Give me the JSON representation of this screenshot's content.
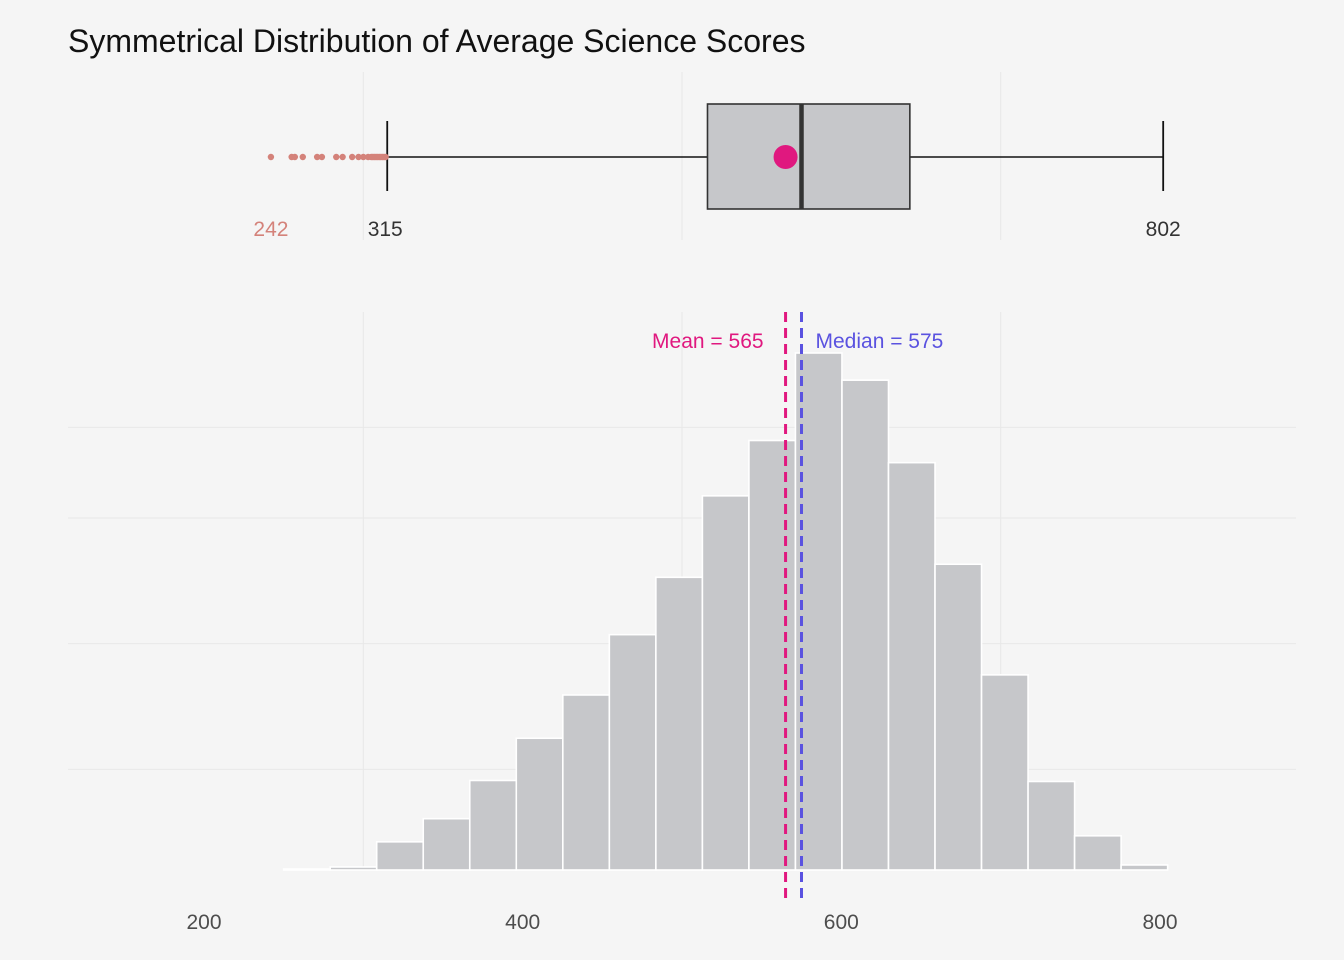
{
  "chart_data": [
    {
      "type": "box",
      "title": "Symmetrical Distribution of Average Science Scores",
      "whisker_low": 315,
      "whisker_high": 802,
      "q1": 516,
      "median": 575,
      "q3": 643,
      "mean": 565,
      "outliers": [
        242,
        255,
        257,
        262,
        271,
        274,
        283,
        287,
        293,
        297,
        300,
        303,
        305,
        306,
        307,
        308,
        309,
        310,
        311,
        312,
        313,
        314
      ],
      "labels": {
        "min_outlier": "242",
        "whisker_low": "315",
        "whisker_high": "802"
      },
      "colors": {
        "box_fill": "#c6c7ca",
        "box_stroke": "#333333",
        "mean_point": "#e0187f",
        "outlier": "#d4827a"
      },
      "xlim": [
        110,
        890
      ]
    },
    {
      "type": "bar",
      "subtype": "histogram",
      "bins": [
        {
          "x0": 250,
          "x1": 279.2,
          "count": 1
        },
        {
          "x0": 279.2,
          "x1": 308.4,
          "count": 3
        },
        {
          "x0": 308.4,
          "x1": 337.6,
          "count": 28
        },
        {
          "x0": 337.6,
          "x1": 366.8,
          "count": 51
        },
        {
          "x0": 366.8,
          "x1": 396,
          "count": 89
        },
        {
          "x0": 396,
          "x1": 425.2,
          "count": 131
        },
        {
          "x0": 425.2,
          "x1": 454.4,
          "count": 174
        },
        {
          "x0": 454.4,
          "x1": 483.6,
          "count": 234
        },
        {
          "x0": 483.6,
          "x1": 512.8,
          "count": 291
        },
        {
          "x0": 512.8,
          "x1": 542,
          "count": 372
        },
        {
          "x0": 542,
          "x1": 571.2,
          "count": 427
        },
        {
          "x0": 571.2,
          "x1": 600.4,
          "count": 514
        },
        {
          "x0": 600.4,
          "x1": 629.6,
          "count": 487
        },
        {
          "x0": 629.6,
          "x1": 658.8,
          "count": 405
        },
        {
          "x0": 658.8,
          "x1": 688,
          "count": 304
        },
        {
          "x0": 688,
          "x1": 717.2,
          "count": 194
        },
        {
          "x0": 717.2,
          "x1": 746.4,
          "count": 88
        },
        {
          "x0": 746.4,
          "x1": 775.6,
          "count": 34
        },
        {
          "x0": 775.6,
          "x1": 804.8,
          "count": 5
        }
      ],
      "xlim": [
        110,
        890
      ],
      "ylim": [
        0,
        520
      ],
      "x_ticks": [
        200,
        400,
        600,
        800
      ],
      "y_grid": [
        100,
        225,
        350,
        440
      ],
      "mean": 565,
      "median": 575,
      "annotations": {
        "mean_label": "Mean = 565",
        "median_label": "Median = 575"
      },
      "colors": {
        "bar_fill": "#c6c7ca",
        "bar_stroke": "#ffffff",
        "mean_line": "#e0187f",
        "median_line": "#5a52e0"
      }
    }
  ]
}
